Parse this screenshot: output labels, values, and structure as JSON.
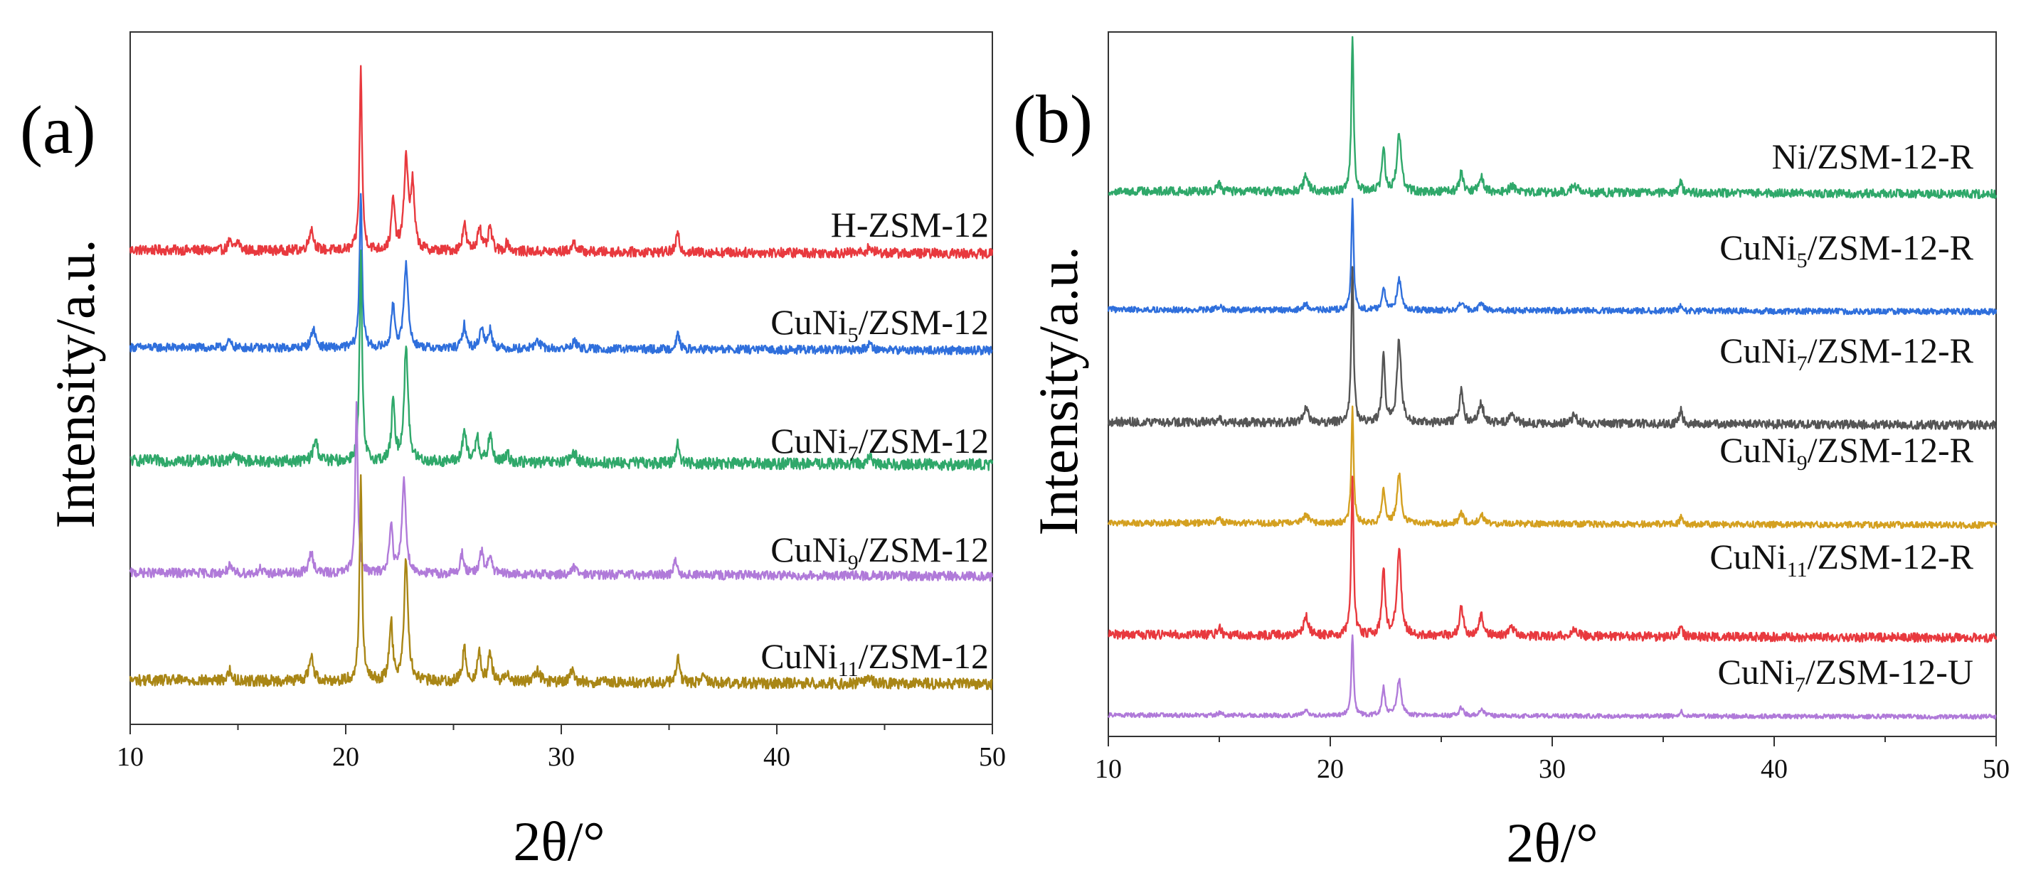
{
  "chart_data": [
    {
      "type": "line",
      "panel_label": "(a)",
      "xlabel": "2θ/°",
      "ylabel": "Intensity/a.u.",
      "xlim": [
        10,
        50
      ],
      "xticks": [
        "10",
        "20",
        "30",
        "40",
        "50"
      ],
      "y_ticks_shown": false,
      "grid": false,
      "offset_stacked": true,
      "series": [
        {
          "name": "H-ZSM-12",
          "label_main": "H-ZSM-12",
          "label_sub": "",
          "label_tail": "",
          "color": "#e8393e",
          "baseline": 0.68,
          "scale": 0.262,
          "peaks": [
            [
              14.6,
              0.05,
              0.18
            ],
            [
              15.0,
              0.05,
              0.2
            ],
            [
              18.4,
              0.12,
              0.25
            ],
            [
              20.7,
              1.0,
              0.14
            ],
            [
              22.2,
              0.28,
              0.18
            ],
            [
              22.8,
              0.5,
              0.22
            ],
            [
              23.1,
              0.35,
              0.2
            ],
            [
              25.5,
              0.15,
              0.2
            ],
            [
              26.2,
              0.14,
              0.2
            ],
            [
              26.7,
              0.13,
              0.2
            ],
            [
              27.5,
              0.05,
              0.2
            ],
            [
              30.6,
              0.05,
              0.25
            ],
            [
              35.4,
              0.1,
              0.18
            ],
            [
              44.3,
              0.03,
              0.3
            ]
          ]
        },
        {
          "name": "CuNi5/ZSM-12",
          "label_main": "CuNi",
          "label_sub": "5",
          "label_tail": "/ZSM-12",
          "color": "#2f6fdc",
          "baseline": 0.54,
          "scale": 0.225,
          "peaks": [
            [
              14.6,
              0.04,
              0.2
            ],
            [
              18.5,
              0.12,
              0.25
            ],
            [
              20.7,
              1.0,
              0.14
            ],
            [
              22.2,
              0.28,
              0.18
            ],
            [
              22.8,
              0.55,
              0.22
            ],
            [
              25.5,
              0.15,
              0.2
            ],
            [
              26.3,
              0.14,
              0.2
            ],
            [
              26.7,
              0.12,
              0.2
            ],
            [
              28.9,
              0.05,
              0.3
            ],
            [
              30.6,
              0.05,
              0.25
            ],
            [
              35.4,
              0.1,
              0.18
            ],
            [
              44.3,
              0.04,
              0.3
            ]
          ]
        },
        {
          "name": "CuNi7/ZSM-12",
          "label_main": "CuNi",
          "label_sub": "7",
          "label_tail": "/ZSM-12",
          "color": "#2fa86a",
          "baseline": 0.375,
          "scale": 0.3,
          "peaks": [
            [
              14.8,
              0.04,
              0.2
            ],
            [
              18.6,
              0.1,
              0.25
            ],
            [
              20.7,
              1.0,
              0.14
            ],
            [
              22.2,
              0.28,
              0.18
            ],
            [
              22.8,
              0.55,
              0.22
            ],
            [
              25.5,
              0.15,
              0.2
            ],
            [
              26.1,
              0.13,
              0.2
            ],
            [
              26.7,
              0.13,
              0.2
            ],
            [
              27.5,
              0.04,
              0.2
            ],
            [
              30.6,
              0.05,
              0.25
            ],
            [
              35.4,
              0.1,
              0.18
            ],
            [
              44.3,
              0.03,
              0.3
            ]
          ]
        },
        {
          "name": "CuNi9/ZSM-12",
          "label_main": "CuNi",
          "label_sub": "9",
          "label_tail": "/ZSM-12",
          "color": "#b07ad9",
          "baseline": 0.214,
          "scale": 0.245,
          "peaks": [
            [
              14.6,
              0.04,
              0.2
            ],
            [
              16.0,
              0.03,
              0.15
            ],
            [
              18.4,
              0.12,
              0.25
            ],
            [
              20.5,
              1.0,
              0.14
            ],
            [
              22.1,
              0.3,
              0.18
            ],
            [
              22.7,
              0.55,
              0.22
            ],
            [
              25.4,
              0.12,
              0.2
            ],
            [
              26.3,
              0.13,
              0.2
            ],
            [
              26.7,
              0.11,
              0.2
            ],
            [
              30.6,
              0.04,
              0.25
            ],
            [
              35.3,
              0.09,
              0.18
            ]
          ]
        },
        {
          "name": "CuNi11/ZSM-12",
          "label_main": "CuNi",
          "label_sub": "11",
          "label_tail": "/ZSM-12",
          "color": "#a98615",
          "baseline": 0.058,
          "scale": 0.293,
          "peaks": [
            [
              14.6,
              0.05,
              0.2
            ],
            [
              18.4,
              0.12,
              0.25
            ],
            [
              20.7,
              1.0,
              0.14
            ],
            [
              22.1,
              0.3,
              0.18
            ],
            [
              22.8,
              0.6,
              0.22
            ],
            [
              25.5,
              0.16,
              0.2
            ],
            [
              26.2,
              0.14,
              0.2
            ],
            [
              26.7,
              0.14,
              0.2
            ],
            [
              27.5,
              0.05,
              0.2
            ],
            [
              28.9,
              0.05,
              0.3
            ],
            [
              30.5,
              0.05,
              0.25
            ],
            [
              35.4,
              0.12,
              0.18
            ],
            [
              36.6,
              0.04,
              0.2
            ],
            [
              44.3,
              0.03,
              0.3
            ]
          ]
        }
      ]
    },
    {
      "type": "line",
      "panel_label": "(b)",
      "xlabel": "2θ/°",
      "ylabel": "Intensity/a.u.",
      "xlim": [
        10,
        50
      ],
      "xticks": [
        "10",
        "20",
        "30",
        "40",
        "50"
      ],
      "y_ticks_shown": false,
      "grid": false,
      "offset_stacked": true,
      "series": [
        {
          "name": "Ni/ZSM-12-R",
          "label_main": "Ni/ZSM-12-R",
          "label_sub": "",
          "label_tail": "",
          "color": "#2fa86a",
          "baseline": 0.77,
          "scale": 0.222,
          "peaks": [
            [
              15.0,
              0.04,
              0.2
            ],
            [
              18.9,
              0.1,
              0.25
            ],
            [
              21.0,
              1.0,
              0.12
            ],
            [
              22.4,
              0.28,
              0.16
            ],
            [
              23.1,
              0.38,
              0.22
            ],
            [
              25.9,
              0.12,
              0.2
            ],
            [
              26.8,
              0.1,
              0.25
            ],
            [
              28.2,
              0.04,
              0.3
            ],
            [
              31.0,
              0.05,
              0.3
            ],
            [
              35.8,
              0.07,
              0.15
            ]
          ]
        },
        {
          "name": "CuNi5/ZSM-12-R",
          "label_main": "CuNi",
          "label_sub": "5",
          "label_tail": "/ZSM-12-R",
          "color": "#2f6fdc",
          "baseline": 0.603,
          "scale": 0.156,
          "peaks": [
            [
              15.0,
              0.03,
              0.2
            ],
            [
              18.9,
              0.05,
              0.25
            ],
            [
              21.0,
              1.0,
              0.12
            ],
            [
              22.4,
              0.22,
              0.16
            ],
            [
              23.1,
              0.28,
              0.22
            ],
            [
              25.9,
              0.07,
              0.2
            ],
            [
              26.8,
              0.06,
              0.25
            ],
            [
              35.8,
              0.04,
              0.15
            ]
          ]
        },
        {
          "name": "CuNi7/ZSM-12-R",
          "label_main": "CuNi",
          "label_sub": "7",
          "label_tail": "/ZSM-12-R",
          "color": "#555555",
          "baseline": 0.442,
          "scale": 0.225,
          "peaks": [
            [
              15.0,
              0.04,
              0.2
            ],
            [
              18.9,
              0.1,
              0.25
            ],
            [
              21.0,
              1.0,
              0.12
            ],
            [
              22.4,
              0.42,
              0.16
            ],
            [
              23.1,
              0.52,
              0.22
            ],
            [
              25.9,
              0.2,
              0.2
            ],
            [
              26.8,
              0.12,
              0.25
            ],
            [
              28.2,
              0.05,
              0.3
            ],
            [
              31.0,
              0.05,
              0.3
            ],
            [
              35.8,
              0.1,
              0.15
            ]
          ]
        },
        {
          "name": "CuNi9/ZSM-12-R",
          "label_main": "CuNi",
          "label_sub": "9",
          "label_tail": "/ZSM-12-R",
          "color": "#d4a020",
          "baseline": 0.3,
          "scale": 0.165,
          "peaks": [
            [
              15.0,
              0.04,
              0.2
            ],
            [
              18.9,
              0.08,
              0.25
            ],
            [
              21.0,
              1.0,
              0.12
            ],
            [
              22.4,
              0.3,
              0.16
            ],
            [
              23.1,
              0.42,
              0.22
            ],
            [
              25.9,
              0.1,
              0.2
            ],
            [
              26.8,
              0.08,
              0.25
            ],
            [
              35.8,
              0.06,
              0.15
            ]
          ]
        },
        {
          "name": "CuNi11/ZSM-12-R",
          "label_main": "CuNi",
          "label_sub": "11",
          "label_tail": "/ZSM-12-R",
          "color": "#e8393e",
          "baseline": 0.14,
          "scale": 0.231,
          "peaks": [
            [
              15.0,
              0.04,
              0.2
            ],
            [
              18.9,
              0.12,
              0.25
            ],
            [
              21.0,
              1.0,
              0.12
            ],
            [
              22.4,
              0.42,
              0.16
            ],
            [
              23.1,
              0.52,
              0.22
            ],
            [
              25.9,
              0.18,
              0.2
            ],
            [
              26.8,
              0.12,
              0.25
            ],
            [
              28.2,
              0.05,
              0.3
            ],
            [
              31.0,
              0.05,
              0.3
            ],
            [
              35.8,
              0.08,
              0.15
            ]
          ]
        },
        {
          "name": "CuNi7/ZSM-12-U",
          "label_main": "CuNi",
          "label_sub": "7",
          "label_tail": "/ZSM-12-U",
          "color": "#b07ad9",
          "baseline": 0.028,
          "scale": 0.114,
          "peaks": [
            [
              15.0,
              0.03,
              0.2
            ],
            [
              18.9,
              0.06,
              0.25
            ],
            [
              21.0,
              1.0,
              0.12
            ],
            [
              22.4,
              0.35,
              0.16
            ],
            [
              23.1,
              0.45,
              0.22
            ],
            [
              25.9,
              0.1,
              0.2
            ],
            [
              26.8,
              0.08,
              0.25
            ],
            [
              35.8,
              0.06,
              0.15
            ]
          ]
        }
      ]
    }
  ]
}
